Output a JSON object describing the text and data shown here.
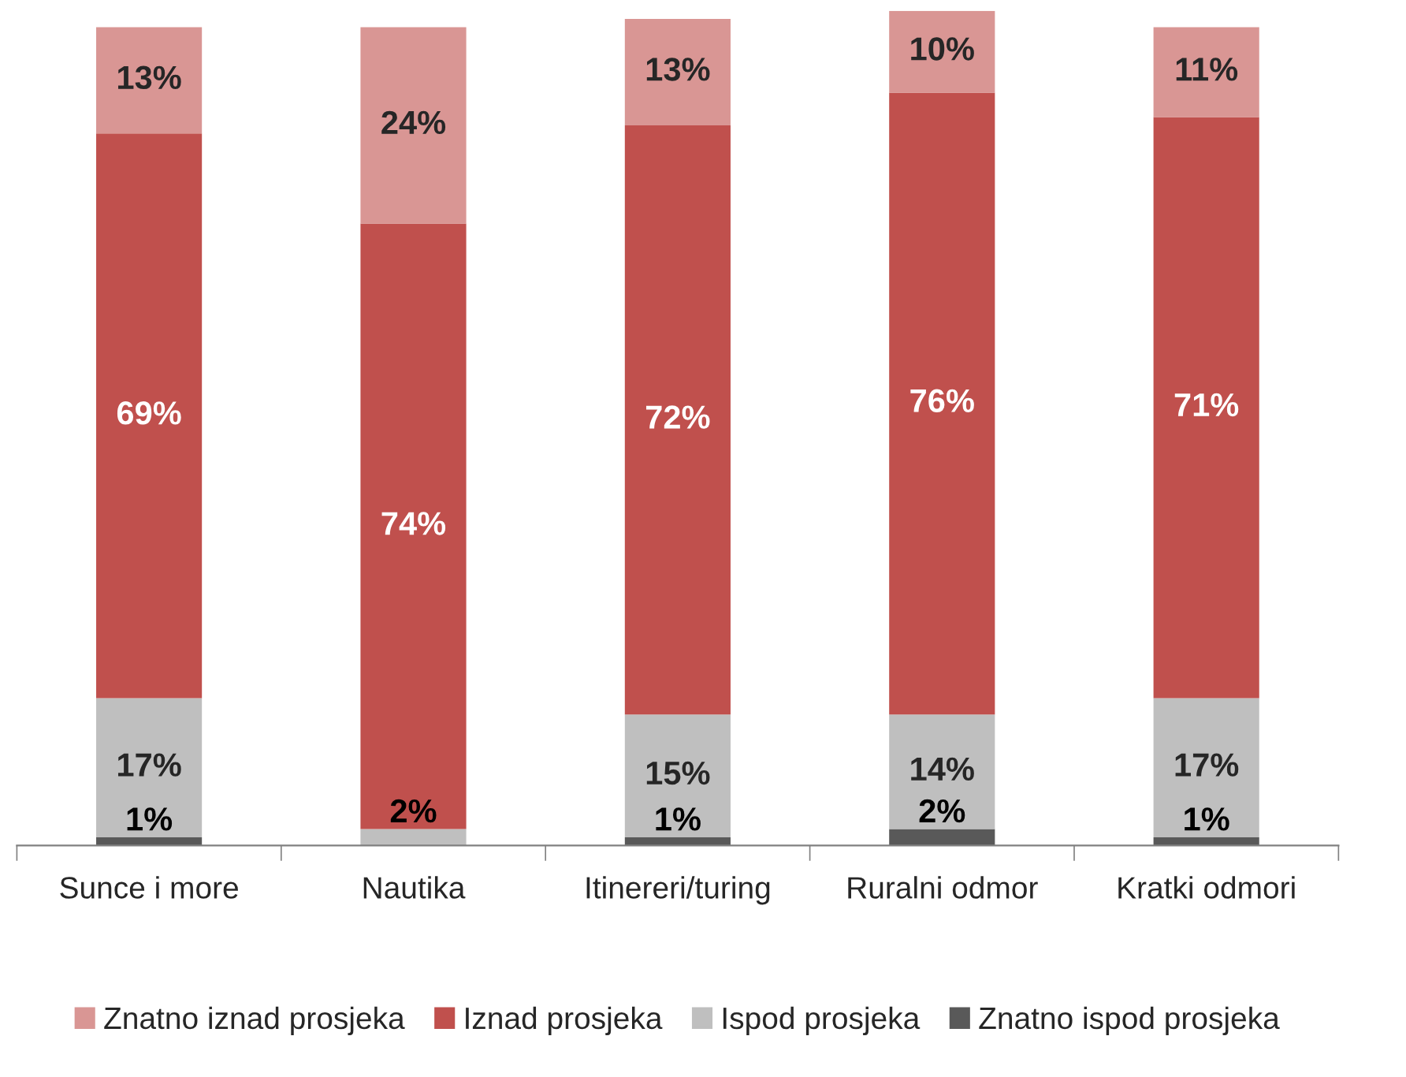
{
  "chart_data": {
    "type": "bar",
    "stacked": true,
    "legend": "bottom",
    "grid": false,
    "categories": [
      "Sunce i more",
      "Nautika",
      "Itinereri/turing",
      "Ruralni odmor",
      "Kratki odmori"
    ],
    "series": [
      {
        "name": "Znatno ispod prosjeka",
        "color": "#595959",
        "values": [
          1,
          null,
          1,
          2,
          1
        ],
        "value_labels": [
          "1%",
          null,
          "1%",
          "2%",
          "1%"
        ]
      },
      {
        "name": "Ispod prosjeka",
        "color": "#bfbfbf",
        "values": [
          17,
          2,
          15,
          14,
          17
        ],
        "value_labels": [
          "17%",
          "2%",
          "15%",
          "14%",
          "17%"
        ]
      },
      {
        "name": "Iznad prosjeka",
        "color": "#c0504d",
        "values": [
          69,
          74,
          72,
          76,
          71
        ],
        "value_labels": [
          "69%",
          "74%",
          "72%",
          "76%",
          "71%"
        ]
      },
      {
        "name": "Znatno iznad prosjeka",
        "color": "#d99694",
        "values": [
          13,
          24,
          13,
          10,
          11
        ],
        "value_labels": [
          "13%",
          "24%",
          "13%",
          "10%",
          "11%"
        ]
      }
    ]
  }
}
